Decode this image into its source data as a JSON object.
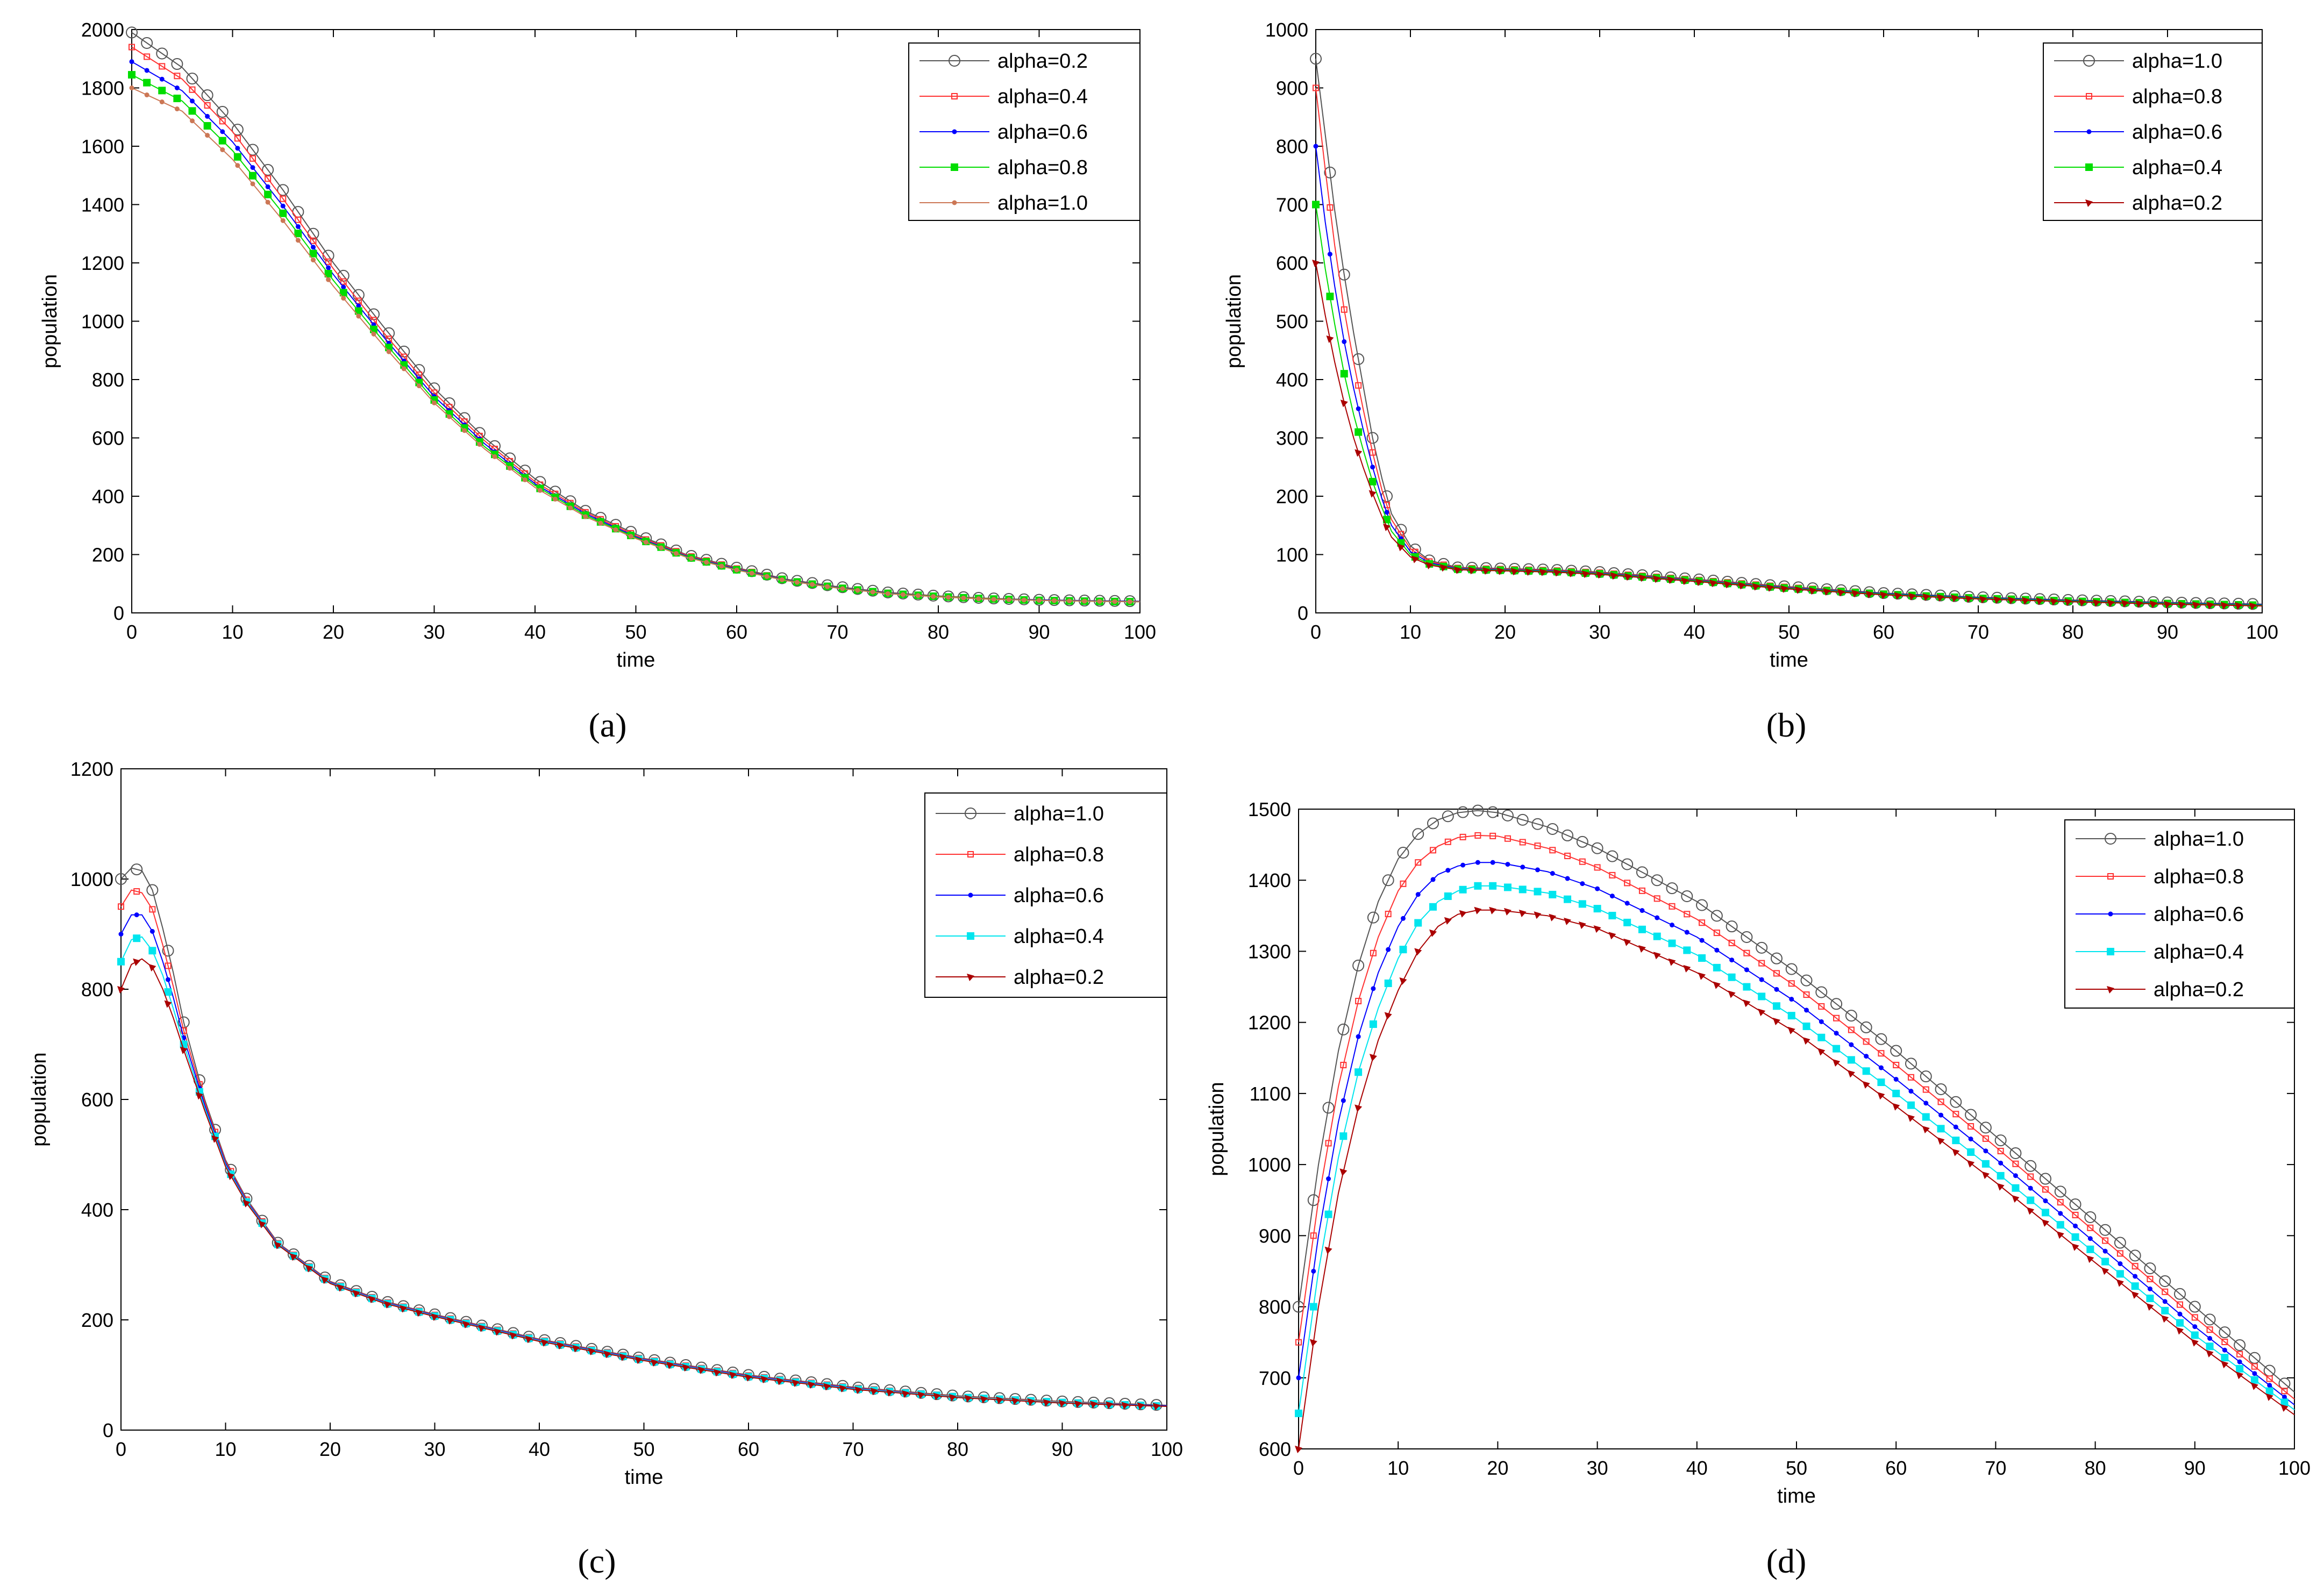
{
  "figure": {
    "panel_labels": [
      "(a)",
      "(b)",
      "(c)",
      "(d)"
    ]
  },
  "chart_data": [
    {
      "type": "line",
      "panel": "a",
      "xlabel": "time",
      "ylabel": "population",
      "xlim": [
        0,
        100
      ],
      "ylim": [
        0,
        2000
      ],
      "xticks": [
        0,
        10,
        20,
        30,
        40,
        50,
        60,
        70,
        80,
        90,
        100
      ],
      "yticks": [
        0,
        200,
        400,
        600,
        800,
        1000,
        1200,
        1400,
        1600,
        1800,
        2000
      ],
      "legend_position": "top-right",
      "x": [
        0,
        5,
        10,
        15,
        20,
        25,
        30,
        35,
        40,
        45,
        50,
        55,
        60,
        65,
        70,
        75,
        80,
        85,
        90,
        95,
        100
      ],
      "series": [
        {
          "name": "alpha=0.2",
          "color": "#555555",
          "marker": "circle",
          "values": [
            1990,
            1870,
            1680,
            1450,
            1200,
            980,
            770,
            600,
            460,
            350,
            270,
            200,
            155,
            115,
            90,
            70,
            58,
            50,
            45,
            42,
            40
          ]
        },
        {
          "name": "alpha=0.4",
          "color": "#ff3333",
          "marker": "square",
          "values": [
            1940,
            1830,
            1650,
            1420,
            1180,
            960,
            755,
            590,
            450,
            345,
            265,
            198,
            152,
            113,
            88,
            69,
            57,
            49,
            44,
            41,
            39
          ]
        },
        {
          "name": "alpha=0.6",
          "color": "#0000ff",
          "marker": "dot",
          "values": [
            1890,
            1790,
            1615,
            1395,
            1160,
            945,
            742,
            580,
            443,
            340,
            261,
            195,
            150,
            112,
            87,
            68,
            56,
            48,
            44,
            41,
            39
          ]
        },
        {
          "name": "alpha=0.8",
          "color": "#00dd00",
          "marker": "filled-square",
          "values": [
            1845,
            1755,
            1585,
            1370,
            1140,
            930,
            730,
            570,
            437,
            335,
            258,
            193,
            148,
            111,
            86,
            67,
            56,
            48,
            43,
            40,
            38
          ]
        },
        {
          "name": "alpha=1.0",
          "color": "#cc7755",
          "marker": "dot",
          "values": [
            1800,
            1720,
            1555,
            1345,
            1120,
            915,
            720,
            562,
            430,
            330,
            255,
            191,
            147,
            110,
            85,
            66,
            55,
            47,
            43,
            40,
            38
          ]
        }
      ]
    },
    {
      "type": "line",
      "panel": "b",
      "xlabel": "time",
      "ylabel": "population",
      "xlim": [
        0,
        100
      ],
      "ylim": [
        0,
        1000
      ],
      "xticks": [
        0,
        10,
        20,
        30,
        40,
        50,
        60,
        70,
        80,
        90,
        100
      ],
      "yticks": [
        0,
        100,
        200,
        300,
        400,
        500,
        600,
        700,
        800,
        900,
        1000
      ],
      "legend_position": "top-right",
      "x": [
        0,
        1,
        2,
        3,
        4,
        5,
        6,
        7,
        8,
        10,
        12,
        15,
        20,
        25,
        30,
        40,
        50,
        60,
        70,
        80,
        90,
        100
      ],
      "series": [
        {
          "name": "alpha=1.0",
          "color": "#555555",
          "marker": "circle",
          "values": [
            950,
            820,
            690,
            580,
            480,
            390,
            300,
            230,
            170,
            115,
            90,
            78,
            76,
            74,
            70,
            58,
            45,
            34,
            27,
            22,
            18,
            15
          ]
        },
        {
          "name": "alpha=0.8",
          "color": "#ff3333",
          "marker": "square",
          "values": [
            900,
            760,
            630,
            520,
            430,
            350,
            275,
            210,
            160,
            110,
            88,
            77,
            75,
            73,
            69,
            57,
            44,
            33,
            26,
            21,
            17,
            14
          ]
        },
        {
          "name": "alpha=0.6",
          "color": "#0000ff",
          "marker": "dot",
          "values": [
            800,
            670,
            560,
            465,
            385,
            315,
            250,
            195,
            150,
            105,
            86,
            76,
            74,
            72,
            68,
            56,
            43,
            33,
            26,
            21,
            17,
            14
          ]
        },
        {
          "name": "alpha=0.4",
          "color": "#00dd00",
          "marker": "filled-square",
          "values": [
            700,
            590,
            495,
            410,
            340,
            280,
            225,
            180,
            140,
            100,
            84,
            75,
            73,
            71,
            67,
            55,
            42,
            32,
            25,
            20,
            16,
            13
          ]
        },
        {
          "name": "alpha=0.2",
          "color": "#aa0000",
          "marker": "triangle",
          "values": [
            600,
            510,
            430,
            360,
            300,
            250,
            205,
            165,
            130,
            96,
            82,
            74,
            72,
            70,
            66,
            54,
            41,
            31,
            24,
            19,
            15,
            12
          ]
        }
      ]
    },
    {
      "type": "line",
      "panel": "c",
      "xlabel": "time",
      "ylabel": "population",
      "xlim": [
        0,
        100
      ],
      "ylim": [
        0,
        1200
      ],
      "xticks": [
        0,
        10,
        20,
        30,
        40,
        50,
        60,
        70,
        80,
        90,
        100
      ],
      "yticks": [
        0,
        200,
        400,
        600,
        800,
        1000,
        1200
      ],
      "legend_position": "top-right",
      "x": [
        0,
        1,
        2,
        3,
        4,
        5,
        6,
        8,
        10,
        12,
        15,
        20,
        25,
        30,
        40,
        50,
        60,
        70,
        80,
        90,
        100
      ],
      "series": [
        {
          "name": "alpha=1.0",
          "color": "#555555",
          "marker": "circle",
          "values": [
            1000,
            1020,
            1015,
            980,
            910,
            830,
            740,
            600,
            490,
            420,
            340,
            270,
            235,
            210,
            165,
            130,
            100,
            78,
            62,
            52,
            45
          ]
        },
        {
          "name": "alpha=0.8",
          "color": "#ff3333",
          "marker": "square",
          "values": [
            950,
            980,
            975,
            945,
            880,
            805,
            725,
            595,
            487,
            418,
            339,
            269,
            234,
            209,
            164,
            129,
            99,
            77,
            61,
            51,
            44
          ]
        },
        {
          "name": "alpha=0.6",
          "color": "#0000ff",
          "marker": "dot",
          "values": [
            900,
            935,
            935,
            905,
            850,
            785,
            712,
            590,
            484,
            416,
            338,
            268,
            233,
            208,
            163,
            128,
            98,
            76,
            60,
            50,
            44
          ]
        },
        {
          "name": "alpha=0.4",
          "color": "#00e5ee",
          "marker": "filled-square",
          "values": [
            850,
            890,
            895,
            870,
            825,
            765,
            700,
            585,
            481,
            414,
            337,
            267,
            232,
            207,
            162,
            127,
            97,
            75,
            60,
            50,
            43
          ]
        },
        {
          "name": "alpha=0.2",
          "color": "#aa0000",
          "marker": "triangle",
          "values": [
            800,
            845,
            855,
            840,
            800,
            748,
            690,
            580,
            478,
            412,
            336,
            266,
            231,
            206,
            161,
            126,
            96,
            74,
            59,
            49,
            43
          ]
        }
      ]
    },
    {
      "type": "line",
      "panel": "d",
      "xlabel": "time",
      "ylabel": "population",
      "xlim": [
        0,
        100
      ],
      "ylim": [
        600,
        1500
      ],
      "xticks": [
        0,
        10,
        20,
        30,
        40,
        50,
        60,
        70,
        80,
        90,
        100
      ],
      "yticks": [
        600,
        700,
        800,
        900,
        1000,
        1100,
        1200,
        1300,
        1400,
        1500
      ],
      "legend_position": "top-right",
      "x": [
        0,
        2,
        4,
        6,
        8,
        10,
        12,
        14,
        16,
        18,
        20,
        25,
        30,
        40,
        50,
        60,
        70,
        80,
        90,
        100
      ],
      "series": [
        {
          "name": "alpha=1.0",
          "color": "#555555",
          "marker": "circle",
          "values": [
            800,
            1000,
            1160,
            1280,
            1370,
            1430,
            1465,
            1485,
            1495,
            1498,
            1495,
            1475,
            1445,
            1370,
            1270,
            1160,
            1040,
            920,
            800,
            680
          ]
        },
        {
          "name": "alpha=0.8",
          "color": "#ff3333",
          "marker": "square",
          "values": [
            750,
            950,
            1110,
            1230,
            1320,
            1385,
            1425,
            1448,
            1460,
            1463,
            1462,
            1445,
            1418,
            1345,
            1250,
            1140,
            1025,
            905,
            785,
            670
          ]
        },
        {
          "name": "alpha=0.6",
          "color": "#0000ff",
          "marker": "dot",
          "values": [
            700,
            900,
            1060,
            1180,
            1270,
            1335,
            1380,
            1408,
            1420,
            1425,
            1425,
            1412,
            1388,
            1320,
            1228,
            1120,
            1008,
            890,
            772,
            662
          ]
        },
        {
          "name": "alpha=0.4",
          "color": "#00e5ee",
          "marker": "filled-square",
          "values": [
            650,
            850,
            1010,
            1130,
            1220,
            1290,
            1340,
            1370,
            1385,
            1392,
            1392,
            1382,
            1360,
            1295,
            1205,
            1100,
            990,
            875,
            760,
            655
          ]
        },
        {
          "name": "alpha=0.2",
          "color": "#aa0000",
          "marker": "triangle",
          "values": [
            600,
            800,
            960,
            1080,
            1175,
            1245,
            1300,
            1335,
            1352,
            1358,
            1358,
            1350,
            1332,
            1270,
            1185,
            1082,
            975,
            862,
            750,
            648
          ]
        }
      ]
    }
  ]
}
